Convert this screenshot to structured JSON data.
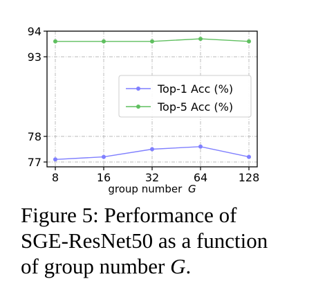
{
  "chart_data": {
    "type": "line",
    "x": [
      8,
      16,
      32,
      64,
      128
    ],
    "x_tick_labels": [
      "8",
      "16",
      "32",
      "64",
      "128"
    ],
    "xlabel": "group number",
    "xlabel_var": "G",
    "y_break": true,
    "y_segments": [
      {
        "ylim": [
          94,
          92.9
        ],
        "ticks": [
          "94",
          "93"
        ]
      },
      {
        "ylim": [
          78.1,
          76.9
        ],
        "ticks": [
          "78",
          "77"
        ]
      }
    ],
    "y_tick_labels": [
      "94",
      "93",
      "78",
      "77"
    ],
    "grid": true,
    "legend_position": "center-right",
    "series": [
      {
        "name": "Top-1 Acc (%)",
        "color": "#7f7fff",
        "values": [
          77.1,
          77.2,
          77.5,
          77.6,
          77.2
        ]
      },
      {
        "name": "Top-5 Acc (%)",
        "color": "#5fbf5f",
        "values": [
          93.6,
          93.6,
          93.6,
          93.7,
          93.6
        ]
      }
    ]
  },
  "caption": {
    "line1": "Figure 5:  Performance of",
    "line2": "SGE-ResNet50 as a function",
    "line3_prefix": "of group number ",
    "line3_var": "G",
    "line3_suffix": "."
  }
}
